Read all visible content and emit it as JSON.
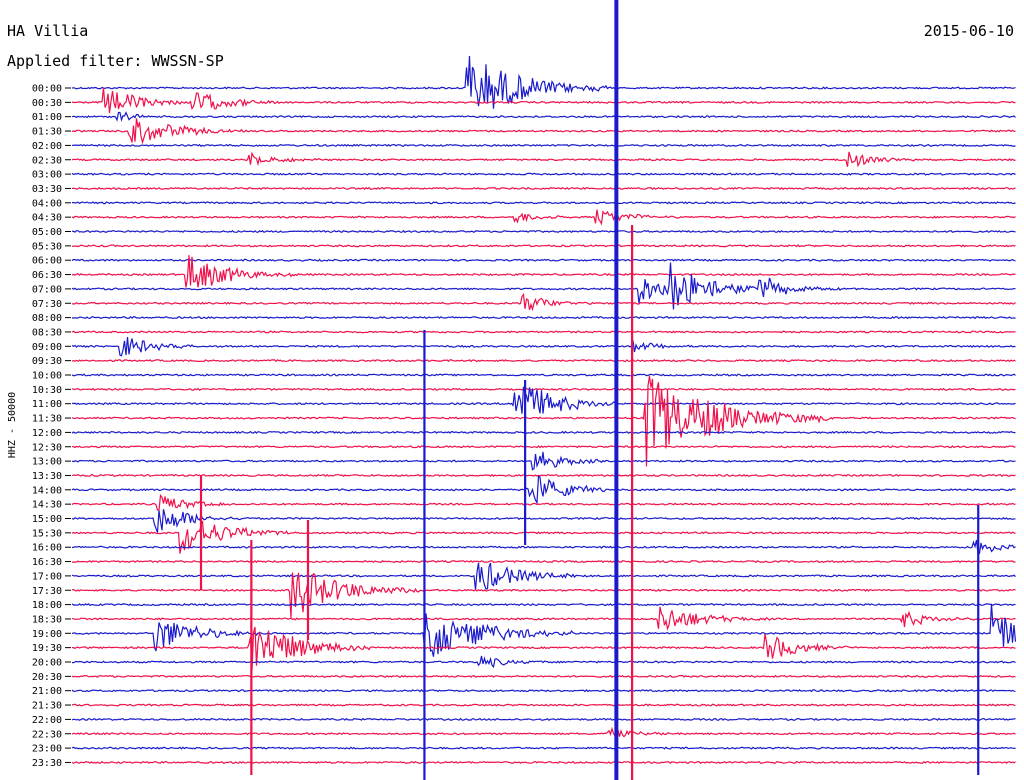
{
  "header": {
    "station": "HA Villia",
    "date": "2015-06-10",
    "filter": "Applied filter: WWSSN-SP"
  },
  "chart_data": {
    "type": "line",
    "title": "HA Villia",
    "ylabel": "HHZ - 50000",
    "row_labels": [
      "00:00",
      "00:30",
      "01:00",
      "01:30",
      "02:00",
      "02:30",
      "03:00",
      "03:30",
      "04:00",
      "04:30",
      "05:00",
      "05:30",
      "06:00",
      "06:30",
      "07:00",
      "07:30",
      "08:00",
      "08:30",
      "09:00",
      "09:30",
      "10:00",
      "10:30",
      "11:00",
      "11:30",
      "12:00",
      "12:30",
      "13:00",
      "13:30",
      "14:00",
      "14:30",
      "15:00",
      "15:30",
      "16:00",
      "16:30",
      "17:00",
      "17:30",
      "18:00",
      "18:30",
      "19:00",
      "19:30",
      "20:00",
      "20:30",
      "21:00",
      "21:30",
      "22:00",
      "22:30",
      "23:00",
      "23:30"
    ],
    "colors": [
      "#1a1acc",
      "#f0104a"
    ],
    "trace_minutes": 30,
    "events": [
      {
        "row": 0,
        "minute": 12.5,
        "amp": 40,
        "dur": 1.5
      },
      {
        "row": 1,
        "minute": 1.0,
        "amp": 16,
        "dur": 1.0
      },
      {
        "row": 1,
        "minute": 3.8,
        "amp": 14,
        "dur": 1.0
      },
      {
        "row": 2,
        "minute": 1.4,
        "amp": 6,
        "dur": 0.6
      },
      {
        "row": 3,
        "minute": 1.8,
        "amp": 18,
        "dur": 1.2
      },
      {
        "row": 5,
        "minute": 5.6,
        "amp": 8,
        "dur": 0.8
      },
      {
        "row": 5,
        "minute": 24.6,
        "amp": 10,
        "dur": 0.8
      },
      {
        "row": 9,
        "minute": 14.0,
        "amp": 7,
        "dur": 0.7
      },
      {
        "row": 9,
        "minute": 16.6,
        "amp": 10,
        "dur": 0.9
      },
      {
        "row": 13,
        "minute": 3.6,
        "amp": 22,
        "dur": 1.2
      },
      {
        "row": 14,
        "minute": 18.0,
        "amp": 16,
        "dur": 0.9
      },
      {
        "row": 14,
        "minute": 19.0,
        "amp": 26,
        "dur": 1.2
      },
      {
        "row": 14,
        "minute": 21.8,
        "amp": 14,
        "dur": 0.9
      },
      {
        "row": 15,
        "minute": 14.3,
        "amp": 10,
        "dur": 0.8
      },
      {
        "row": 18,
        "minute": 1.5,
        "amp": 14,
        "dur": 0.8
      },
      {
        "row": 18,
        "minute": 17.8,
        "amp": 7,
        "dur": 0.6
      },
      {
        "row": 22,
        "minute": 14.0,
        "amp": 30,
        "dur": 1.1
      },
      {
        "row": 23,
        "minute": 18.2,
        "amp": 50,
        "dur": 2.0
      },
      {
        "row": 23,
        "minute": 19.3,
        "amp": 10,
        "dur": 0.8
      },
      {
        "row": 26,
        "minute": 14.6,
        "amp": 14,
        "dur": 0.8
      },
      {
        "row": 28,
        "minute": 14.4,
        "amp": 22,
        "dur": 1.0
      },
      {
        "row": 29,
        "minute": 2.7,
        "amp": 12,
        "dur": 0.8
      },
      {
        "row": 30,
        "minute": 2.6,
        "amp": 18,
        "dur": 1.0
      },
      {
        "row": 31,
        "minute": 3.4,
        "amp": 24,
        "dur": 1.2
      },
      {
        "row": 32,
        "minute": 28.6,
        "amp": 10,
        "dur": 0.7
      },
      {
        "row": 34,
        "minute": 12.8,
        "amp": 20,
        "dur": 1.2
      },
      {
        "row": 35,
        "minute": 6.9,
        "amp": 30,
        "dur": 1.4
      },
      {
        "row": 37,
        "minute": 18.6,
        "amp": 16,
        "dur": 1.2
      },
      {
        "row": 37,
        "minute": 26.3,
        "amp": 10,
        "dur": 0.8
      },
      {
        "row": 38,
        "minute": 2.6,
        "amp": 22,
        "dur": 1.1
      },
      {
        "row": 38,
        "minute": 11.2,
        "amp": 30,
        "dur": 1.6
      },
      {
        "row": 38,
        "minute": 29.2,
        "amp": 30,
        "dur": 1.0
      },
      {
        "row": 39,
        "minute": 5.6,
        "amp": 34,
        "dur": 1.3
      },
      {
        "row": 39,
        "minute": 22.0,
        "amp": 16,
        "dur": 1.0
      },
      {
        "row": 40,
        "minute": 12.9,
        "amp": 8,
        "dur": 0.8
      },
      {
        "row": 45,
        "minute": 17.0,
        "amp": 8,
        "dur": 0.7
      }
    ],
    "spikes": [
      {
        "row": 22,
        "minute": 11.2,
        "top": 330,
        "bottom": 780
      },
      {
        "row": 27,
        "minute": 4.1,
        "top": 475,
        "bottom": 590
      },
      {
        "row": 39,
        "minute": 5.7,
        "top": 540,
        "bottom": 775
      },
      {
        "row": 37,
        "minute": 7.5,
        "top": 520,
        "bottom": 640
      },
      {
        "row": 40,
        "minute": 28.8,
        "top": 505,
        "bottom": 775
      },
      {
        "row": 26,
        "minute": 14.4,
        "top": 380,
        "bottom": 545
      },
      {
        "row": 22,
        "minute": 17.3,
        "top": 0,
        "bottom": 780
      },
      {
        "row": 23,
        "minute": 17.8,
        "top": 225,
        "bottom": 780
      }
    ]
  }
}
